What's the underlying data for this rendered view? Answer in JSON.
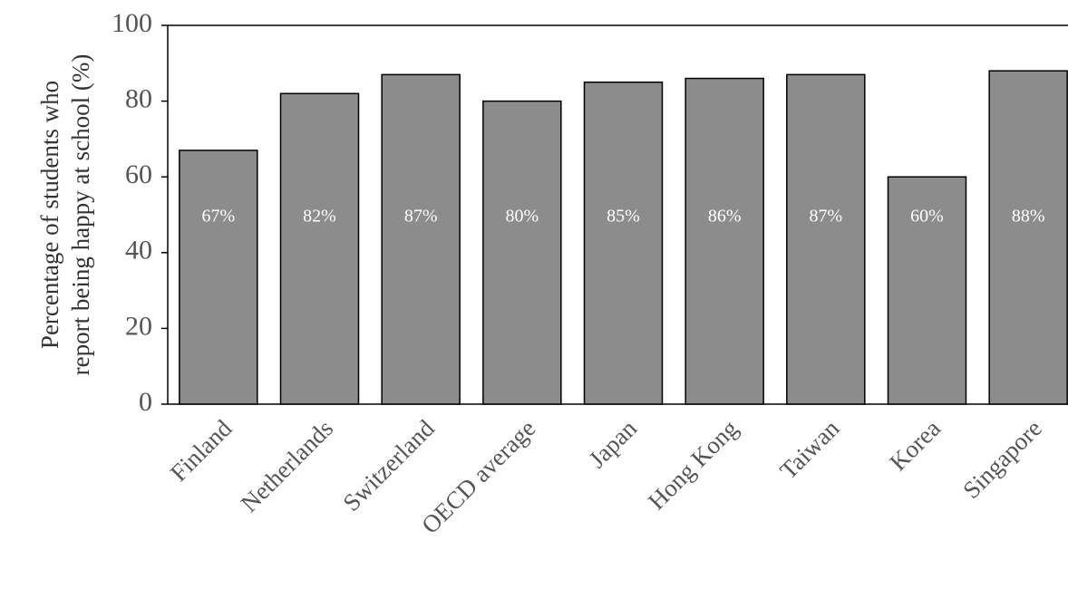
{
  "chart_data": {
    "type": "bar",
    "y_label_lines": [
      "Percentage of students who",
      "report being happy at school (%)"
    ],
    "categories": [
      "Finland",
      "Netherlands",
      "Switzerland",
      "OECD average",
      "Japan",
      "Hong Kong",
      "Taiwan",
      "Korea",
      "Singapore"
    ],
    "values": [
      67,
      82,
      87,
      80,
      85,
      86,
      87,
      60,
      88
    ],
    "value_labels": [
      "67%",
      "82%",
      "87%",
      "80%",
      "85%",
      "86%",
      "87%",
      "60%",
      "88%"
    ],
    "color": "#8c8c8c",
    "ylim": [
      0,
      100
    ],
    "yticks": [
      0,
      20,
      40,
      60,
      80,
      100
    ],
    "grid": false
  }
}
